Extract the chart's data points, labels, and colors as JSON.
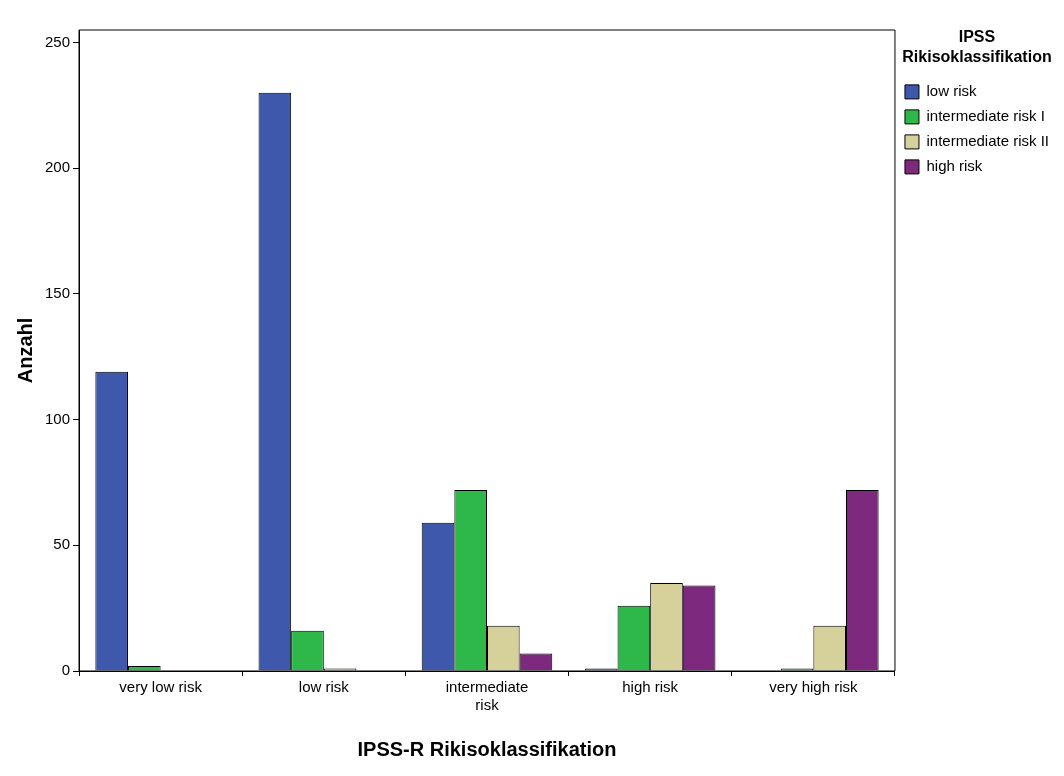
{
  "chart_data": {
    "type": "bar",
    "xlabel": "IPSS-R Rikisoklassifikation",
    "ylabel": "Anzahl",
    "legend_title": "IPSS Rikisoklassifikation",
    "legend": "top right",
    "grid": false,
    "categories": [
      "very low risk",
      "low risk",
      "intermediate risk",
      "high risk",
      "very high risk"
    ],
    "series": [
      {
        "name": "low risk",
        "color": "#3e58ac",
        "values": [
          119,
          230,
          59,
          1,
          0
        ]
      },
      {
        "name": "intermediate risk I",
        "color": "#2fb84a",
        "values": [
          2,
          16,
          72,
          26,
          1
        ]
      },
      {
        "name": "intermediate risk II",
        "color": "#d6d09a",
        "values": [
          0,
          1,
          18,
          35,
          18
        ]
      },
      {
        "name": "high risk",
        "color": "#7d2a7e",
        "values": [
          0,
          0,
          7,
          34,
          72
        ]
      }
    ],
    "ylim": [
      0,
      255
    ],
    "yticks": [
      0,
      50,
      100,
      150,
      200,
      250
    ]
  }
}
